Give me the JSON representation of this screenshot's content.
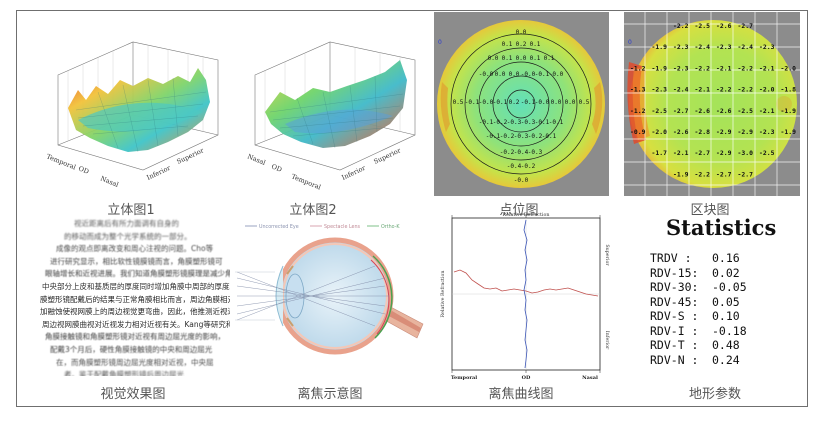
{
  "captions": {
    "surface1": "立体图1",
    "surface2": "立体图2",
    "point_map": "点位图",
    "block_map": "区块图",
    "visual_effect": "视觉效果图",
    "defocus": "离焦示意图",
    "defocus_curve": "离焦曲线图",
    "topo_params": "地形参数"
  },
  "surface_axes": {
    "surface1": [
      "Temporal",
      "OD",
      "Nasal",
      "Inferior",
      "Superior"
    ],
    "surface2": [
      "Nasal",
      "OD",
      "Temporal",
      "Inferior",
      "Superior"
    ]
  },
  "point_map": {
    "rows": [
      [
        "0.0"
      ],
      [
        "0.1",
        "0.2",
        "0.1"
      ],
      [
        "0.0",
        "0.1",
        "0.0",
        "0.1",
        "0.1"
      ],
      [
        "-0.0",
        "0.0",
        "0.0",
        "-0.0",
        "-0.1",
        "-0.0"
      ],
      [
        "0.5",
        "-0.1",
        "-0.0",
        "-0.1",
        "0.2",
        "-0.1",
        "-0.0",
        "0.0",
        "0.0",
        "0.5"
      ],
      [
        "-0.1",
        "-0.2",
        "-0.3",
        "-0.3",
        "-0.1",
        "-0.1"
      ],
      [
        "-0.1",
        "-0.2",
        "-0.3",
        "-0.2",
        "-0.1"
      ],
      [
        "-0.2",
        "-0.4",
        "-0.3"
      ],
      [
        "-0.4",
        "-0.2"
      ],
      [
        "-0.0"
      ]
    ],
    "marker": "0"
  },
  "block_map": {
    "rows": [
      [
        "-2.2",
        "-2.5",
        "-2.6",
        "-2.7"
      ],
      [
        "-1.9",
        "-2.3",
        "-2.4",
        "-2.3",
        "-2.4",
        "-2.3"
      ],
      [
        "-1.2",
        "-1.9",
        "-2.3",
        "-2.2",
        "-2.1",
        "-2.2",
        "-2.1",
        "-2.0"
      ],
      [
        "-1.3",
        "-2.3",
        "-2.4",
        "-2.1",
        "-2.2",
        "-2.2",
        "-2.0",
        "-1.8"
      ],
      [
        "-1.2",
        "-2.5",
        "-2.7",
        "-2.6",
        "-2.6",
        "-2.5",
        "-2.1",
        "-1.9"
      ],
      [
        "-0.9",
        "-2.0",
        "-2.6",
        "-2.8",
        "-2.9",
        "-2.9",
        "-2.3",
        "-1.9"
      ],
      [
        "-1.7",
        "-2.1",
        "-2.7",
        "-2.9",
        "-3.0",
        "-2.5"
      ],
      [
        "-1.9",
        "-2.2",
        "-2.7",
        "-2.7"
      ]
    ],
    "marker": "0"
  },
  "visual_text": [
    "视近距离后有所力面调有自身的",
    "的移动而成为整个光学系统的一部分。",
    "成像的观点即离改变和周心注视的问题。Cho等",
    "进行研究显示，相比软性镜膜镜而言，角膜塑形镜可",
    "眼轴增长和近视进展。我们知道角膜塑形镜膜理是减少角",
    "中央部分上皮和基质层的厚度同时增加角膜中周部的厚度。角",
    "膜塑形镜配戴后的结果与正常角膜相比而言，周边角膜相对更",
    "加融蚀使视网膜上的周边视觉更弯曲，因此，他推测近视进展",
    "周边视网膜曲视对近视发力相对近视有关。Kang等研究称",
    "角膜接触镜和角膜塑形镜对近视有周边屈光度的影响，",
    "配戴3个月后，硬性角膜接触镜的中央和周边屈光",
    "在，而角膜塑形镜周边屈光度相对近视，中央屈",
    "者。鉴于配戴角膜塑形镜后周边屈光",
    "相对近视发展的"
  ],
  "defocus_legend": [
    "Uncorrected Eye",
    "Spectacle Lens",
    "Ortho-K"
  ],
  "defocus_curve": {
    "top_title": "Relative Refraction",
    "left_title": "Relative Refraction",
    "right_top": "Superior",
    "right_bottom": "Inferior",
    "bottom": [
      "Temporal",
      "OD",
      "Nasal"
    ]
  },
  "statistics": {
    "title": "Statistics",
    "rows": [
      {
        "label": "TRDV :",
        "value": "0.16"
      },
      {
        "label": "RDV-15:",
        "value": "0.02"
      },
      {
        "label": "RDV-30:",
        "value": "-0.05"
      },
      {
        "label": "RDV-45:",
        "value": "0.05"
      },
      {
        "label": "RDV-S :",
        "value": "0.10"
      },
      {
        "label": "RDV-I :",
        "value": "-0.18"
      },
      {
        "label": "RDV-T :",
        "value": "0.48"
      },
      {
        "label": "RDV-N :",
        "value": "0.24"
      }
    ]
  },
  "colors": {
    "frame": "#6f6f6f",
    "map_gray": "#8c8c8c",
    "map_green": "#a7e35a",
    "map_cyan": "#5fe0b4",
    "map_red": "#e14a2c",
    "curve_red": "#c0504d",
    "curve_blue": "#3b55b6"
  }
}
